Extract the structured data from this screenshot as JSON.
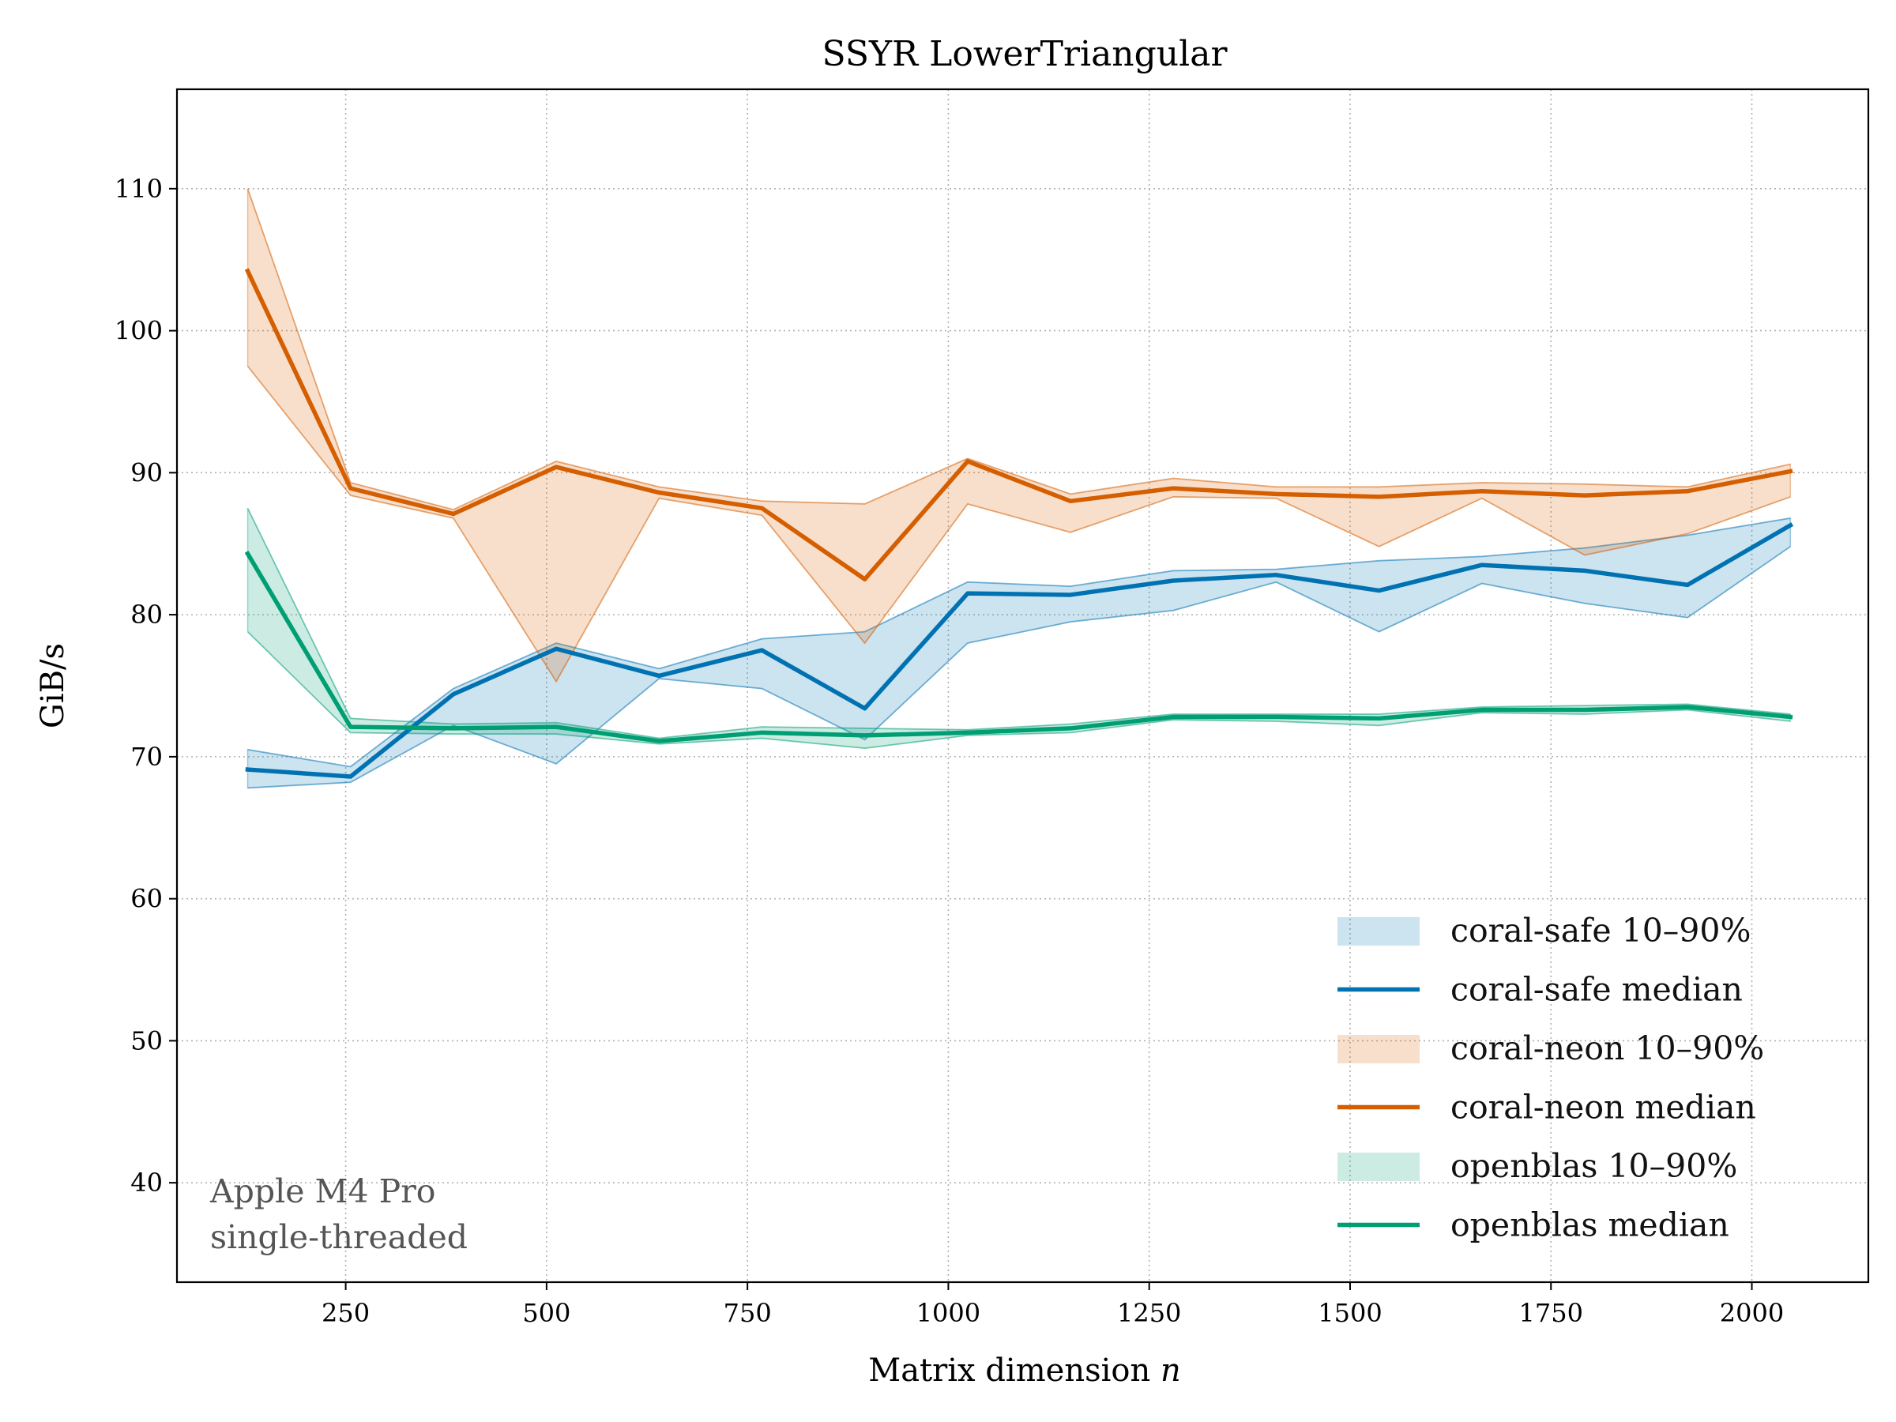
{
  "chart_data": {
    "type": "line",
    "title": "SSYR LowerTriangular",
    "xlabel": "Matrix dimension",
    "xlabel_var": "n",
    "ylabel": "GiB/s",
    "xlim": [
      40,
      2145
    ],
    "ylim": [
      33,
      117
    ],
    "xticks": [
      250,
      500,
      750,
      1000,
      1250,
      1500,
      1750,
      2000
    ],
    "yticks": [
      40,
      50,
      60,
      70,
      80,
      90,
      100,
      110
    ],
    "grid": true,
    "legend_position": "lower-right",
    "x": [
      128,
      256,
      384,
      512,
      640,
      768,
      896,
      1024,
      1152,
      1280,
      1408,
      1536,
      1664,
      1792,
      1920,
      2048
    ],
    "series": [
      {
        "name": "coral-safe",
        "color": "#0072b2",
        "band_label": "coral-safe 10–90%",
        "median_label": "coral-safe median",
        "median": [
          69.1,
          68.6,
          74.4,
          77.6,
          75.7,
          77.5,
          73.4,
          81.5,
          81.4,
          82.4,
          82.8,
          81.7,
          83.5,
          83.1,
          82.1,
          86.3
        ],
        "p10": [
          67.8,
          68.2,
          72.2,
          69.5,
          75.5,
          74.8,
          71.2,
          78.0,
          79.5,
          80.3,
          82.3,
          78.8,
          82.2,
          80.8,
          79.8,
          84.8
        ],
        "p90": [
          70.5,
          69.3,
          74.8,
          78.0,
          76.2,
          78.3,
          78.8,
          82.3,
          82.0,
          83.1,
          83.2,
          83.8,
          84.1,
          84.7,
          85.6,
          86.8
        ]
      },
      {
        "name": "coral-neon",
        "color": "#d55e00",
        "band_label": "coral-neon 10–90%",
        "median_label": "coral-neon median",
        "median": [
          104.2,
          88.9,
          87.1,
          90.4,
          88.6,
          87.5,
          82.5,
          90.8,
          88.0,
          88.9,
          88.5,
          88.3,
          88.7,
          88.4,
          88.7,
          90.1
        ],
        "p10": [
          97.5,
          88.4,
          86.8,
          75.3,
          88.2,
          87.0,
          78.0,
          87.8,
          85.8,
          88.3,
          88.2,
          84.8,
          88.2,
          84.2,
          85.7,
          88.3
        ],
        "p90": [
          110.0,
          89.3,
          87.4,
          90.8,
          89.0,
          88.0,
          87.8,
          91.0,
          88.5,
          89.6,
          89.0,
          89.0,
          89.3,
          89.2,
          89.0,
          90.6
        ]
      },
      {
        "name": "openblas",
        "color": "#009e73",
        "band_label": "openblas 10–90%",
        "median_label": "openblas median",
        "median": [
          84.3,
          72.1,
          72.0,
          72.1,
          71.1,
          71.7,
          71.5,
          71.7,
          72.0,
          72.8,
          72.8,
          72.7,
          73.3,
          73.3,
          73.5,
          72.8
        ],
        "p10": [
          78.8,
          71.7,
          71.6,
          71.6,
          70.9,
          71.3,
          70.6,
          71.5,
          71.7,
          72.6,
          72.5,
          72.2,
          73.1,
          73.0,
          73.3,
          72.5
        ],
        "p90": [
          87.5,
          72.7,
          72.3,
          72.4,
          71.3,
          72.1,
          72.0,
          71.9,
          72.3,
          73.0,
          73.0,
          73.0,
          73.5,
          73.6,
          73.7,
          73.0
        ]
      }
    ]
  },
  "annotation": {
    "line1": "Apple M4 Pro",
    "line2": "single-threaded"
  }
}
